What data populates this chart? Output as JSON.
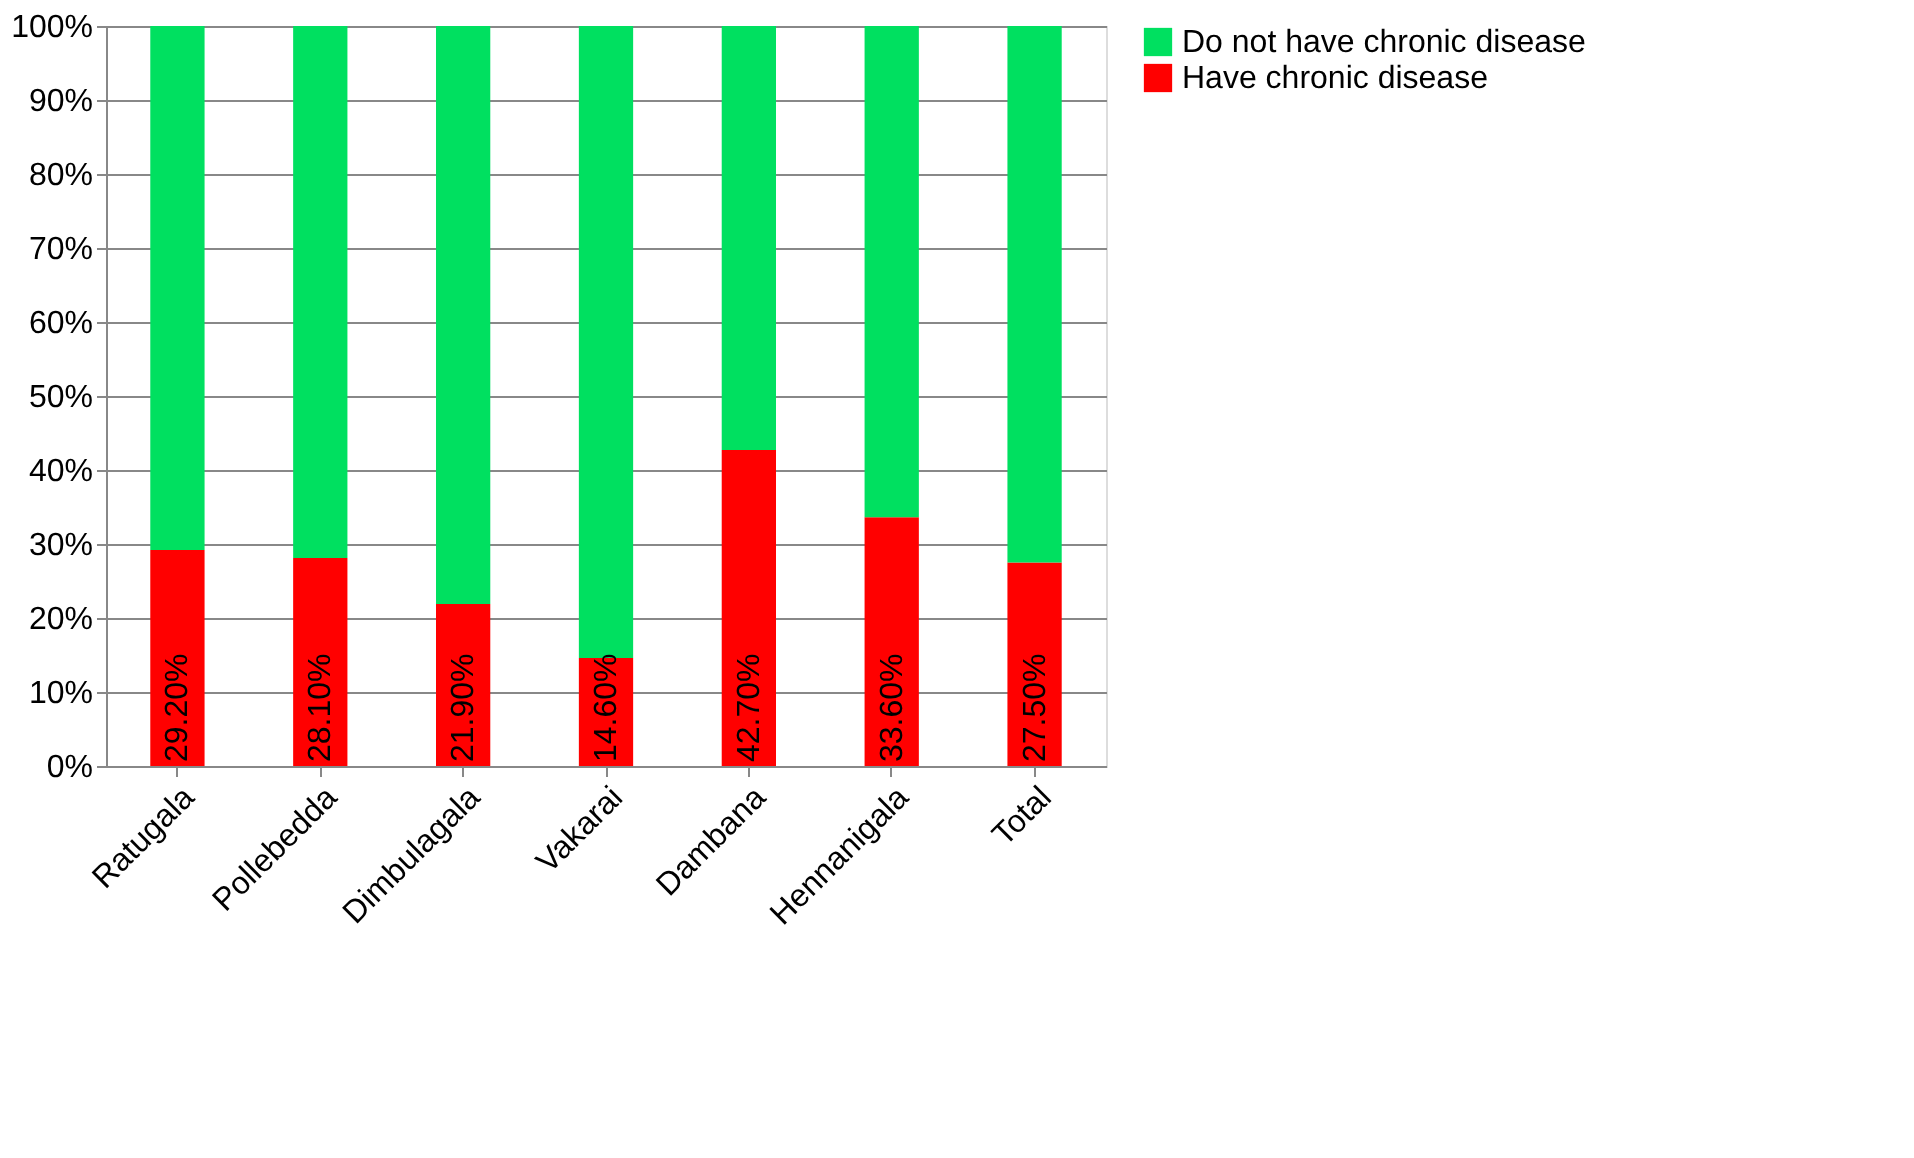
{
  "chart_data": {
    "type": "bar",
    "stacked": true,
    "categories": [
      "Ratugala",
      "Pollebedda",
      "Dimbulagala",
      "Vakarai",
      "Dambana",
      "Hennanigala",
      "Total"
    ],
    "series": [
      {
        "name": "Have chronic disease",
        "color": "#ff0000",
        "values": [
          29.2,
          28.1,
          21.9,
          14.6,
          42.7,
          33.6,
          27.5
        ],
        "value_labels": [
          "29.20%",
          "28.10%",
          "21.90%",
          "14.60%",
          "42.70%",
          "33.60%",
          "27.50%"
        ]
      },
      {
        "name": "Do not have chronic disease",
        "color": "#00e060",
        "values": [
          70.8,
          71.9,
          78.1,
          85.4,
          57.3,
          66.4,
          72.5
        ]
      }
    ],
    "ylim": [
      0,
      100
    ],
    "yticks": [
      {
        "value": 0,
        "label": "0%"
      },
      {
        "value": 10,
        "label": "10%"
      },
      {
        "value": 20,
        "label": "20%"
      },
      {
        "value": 30,
        "label": "30%"
      },
      {
        "value": 40,
        "label": "40%"
      },
      {
        "value": 50,
        "label": "50%"
      },
      {
        "value": 60,
        "label": "60%"
      },
      {
        "value": 70,
        "label": "70%"
      },
      {
        "value": 80,
        "label": "80%"
      },
      {
        "value": 90,
        "label": "90%"
      },
      {
        "value": 100,
        "label": "100%"
      }
    ],
    "grid": "y",
    "legend": "right"
  }
}
